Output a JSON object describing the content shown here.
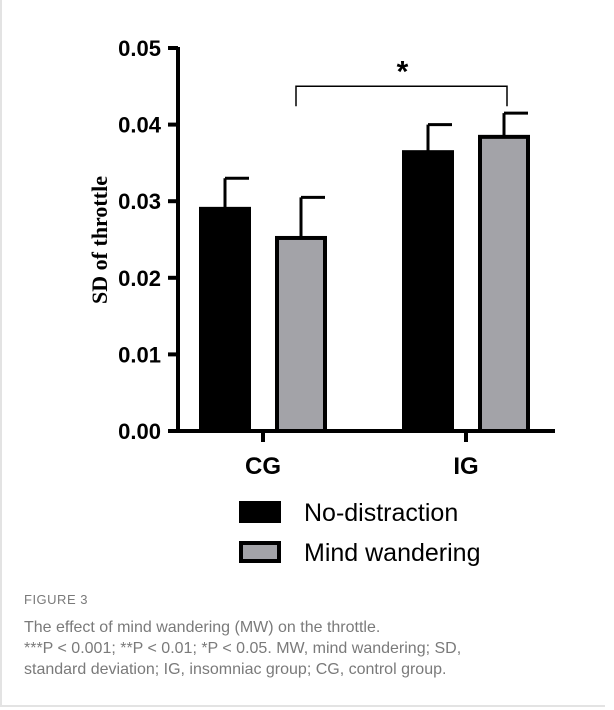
{
  "chart_data": {
    "type": "bar",
    "categories": [
      "CG",
      "IG"
    ],
    "ylabel": "SD of throttle",
    "ylim": [
      0,
      0.05
    ],
    "yticks": [
      "0.00",
      "0.01",
      "0.02",
      "0.03",
      "0.04",
      "0.05"
    ],
    "series": [
      {
        "name": "No-distraction",
        "color": "#000000",
        "values": [
          0.029,
          0.0364
        ],
        "error": [
          0.004,
          0.0036
        ]
      },
      {
        "name": "Mind wandering",
        "color": "#a3a3a8",
        "values": [
          0.0252,
          0.0384
        ],
        "error": [
          0.0053,
          0.0031
        ]
      }
    ],
    "significance": {
      "label": "*",
      "between": [
        "CG Mind wandering",
        "IG Mind wandering"
      ],
      "y": 0.045
    },
    "legend_position": "bottom",
    "grid": false
  },
  "caption": {
    "figure_label": "FIGURE 3",
    "line1": "The effect of mind wandering (MW) on the throttle.",
    "line2": "***P < 0.001; **P < 0.01; *P < 0.05. MW, mind wandering; SD,",
    "line3": "standard deviation; IG, insomniac group; CG, control group."
  }
}
